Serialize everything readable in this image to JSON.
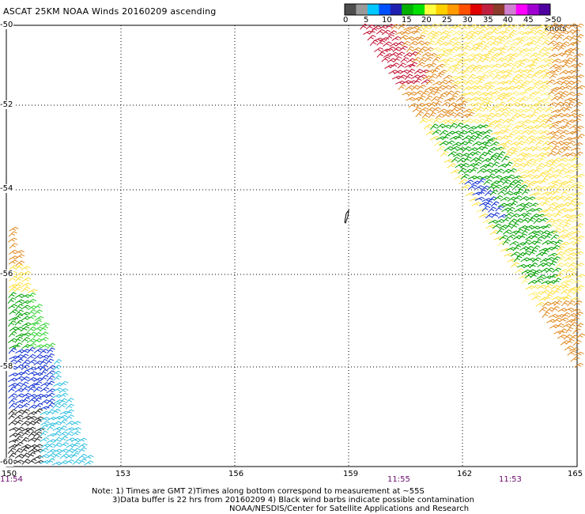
{
  "title": "ASCAT 25KM NOAA Winds 20160209 ascending",
  "colorbar": {
    "colors": [
      "#4d4d4d",
      "#9a9a9a",
      "#00c8ff",
      "#0050ff",
      "#2020b0",
      "#00b000",
      "#00e000",
      "#ffff40",
      "#ffd000",
      "#ff9a00",
      "#ff5000",
      "#e00000",
      "#c02040",
      "#8a3a2a",
      "#d080d0",
      "#ff00ff",
      "#a000d0",
      "#5000a0"
    ],
    "labels": [
      "0",
      "5",
      "10",
      "15",
      "20",
      "25",
      "30",
      "35",
      "40",
      "45",
      ">50 knots"
    ]
  },
  "map": {
    "lon_ticks": [
      "150",
      "153",
      "156",
      "159",
      "162",
      "165"
    ],
    "lat_ticks": [
      "-50",
      "-52",
      "-54",
      "-56",
      "-58",
      "-60"
    ],
    "times": [
      "11:54",
      "11:55",
      "11:53"
    ]
  },
  "notes": {
    "line1": "Note: 1) Times are GMT 2)Times along bottom correspond to measurement at ~55S",
    "line2": "3)Data buffer is 22 hrs from 20160209 4) Black wind barbs indicate possible contamination",
    "line3": "NOAA/NESDIS/Center for Satellite Applications and Research"
  },
  "barb_colors": {
    "red": "#c01030",
    "orange": "#e08a20",
    "yellow": "#ffe040",
    "lightyellow": "#ffee70",
    "green": "#00a000",
    "lightgreen": "#30d030",
    "blue": "#1030d0",
    "cyan": "#30c0e0",
    "black": "#202020"
  }
}
